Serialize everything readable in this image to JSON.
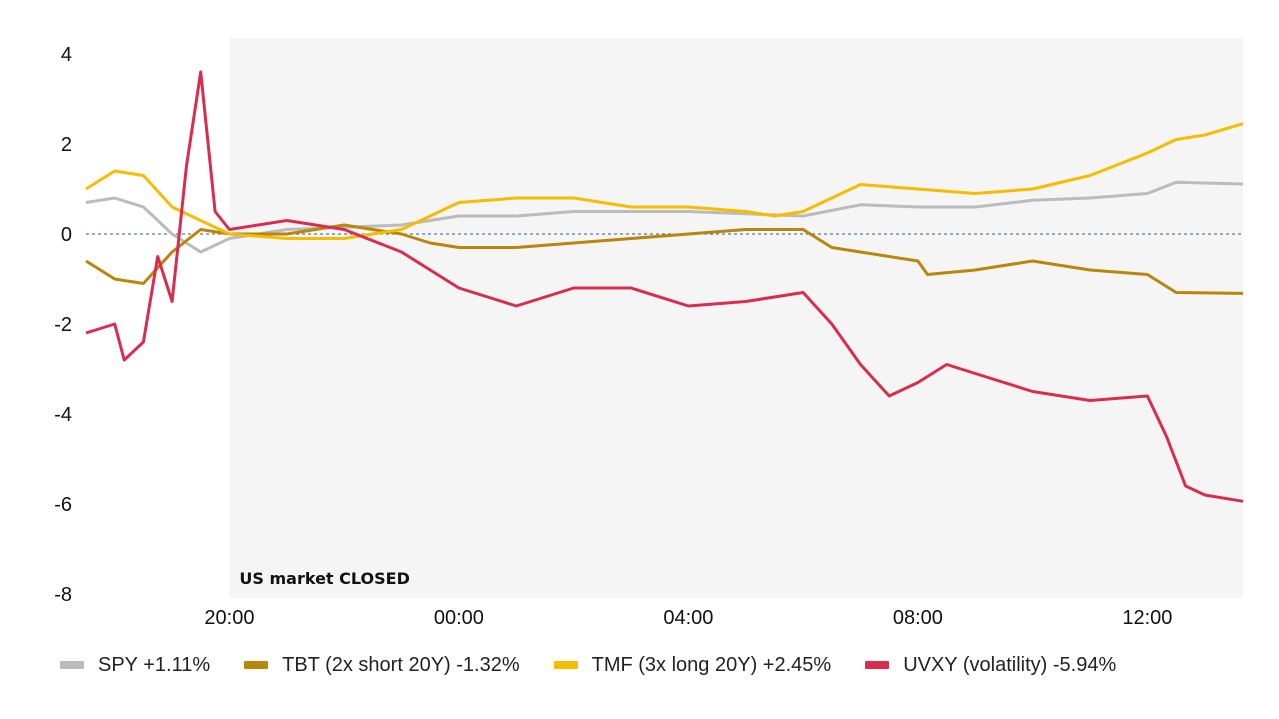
{
  "chart_data": {
    "type": "line",
    "title": "",
    "xlabel": "",
    "ylabel": "",
    "ylim": [
      -8,
      4
    ],
    "xlim": [
      "17:30",
      "13:40"
    ],
    "y_ticks": [
      -8,
      -6,
      -4,
      -2,
      0,
      2,
      4
    ],
    "x_ticks": [
      "20:00",
      "00:00",
      "04:00",
      "08:00",
      "12:00"
    ],
    "zero_line": "dashed",
    "grid": false,
    "shaded_region": {
      "from": "20:00",
      "to": "13:40",
      "label": "US market CLOSED",
      "color": "#f5f5f5"
    },
    "legend_position": "bottom",
    "series": [
      {
        "name": "SPY +1.11%",
        "color": "#bbbbbb",
        "points": [
          [
            "17:30",
            0.7
          ],
          [
            "18:00",
            0.8
          ],
          [
            "18:30",
            0.6
          ],
          [
            "19:00",
            0.0
          ],
          [
            "19:30",
            -0.4
          ],
          [
            "20:00",
            -0.1
          ],
          [
            "21:00",
            0.1
          ],
          [
            "22:00",
            0.15
          ],
          [
            "23:00",
            0.2
          ],
          [
            "00:00",
            0.4
          ],
          [
            "01:00",
            0.4
          ],
          [
            "02:00",
            0.5
          ],
          [
            "03:00",
            0.5
          ],
          [
            "04:00",
            0.5
          ],
          [
            "05:00",
            0.45
          ],
          [
            "06:00",
            0.4
          ],
          [
            "07:00",
            0.65
          ],
          [
            "08:00",
            0.6
          ],
          [
            "09:00",
            0.6
          ],
          [
            "10:00",
            0.75
          ],
          [
            "11:00",
            0.8
          ],
          [
            "12:00",
            0.9
          ],
          [
            "12:30",
            1.15
          ],
          [
            "13:40",
            1.11
          ]
        ]
      },
      {
        "name": "TBT (2x short 20Y) -1.32%",
        "color": "#b8860b",
        "points": [
          [
            "17:30",
            -0.6
          ],
          [
            "18:00",
            -1.0
          ],
          [
            "18:30",
            -1.1
          ],
          [
            "19:00",
            -0.4
          ],
          [
            "19:30",
            0.1
          ],
          [
            "20:00",
            0.0
          ],
          [
            "21:00",
            0.0
          ],
          [
            "22:00",
            0.2
          ],
          [
            "23:00",
            0.0
          ],
          [
            "23:30",
            -0.2
          ],
          [
            "00:00",
            -0.3
          ],
          [
            "01:00",
            -0.3
          ],
          [
            "02:00",
            -0.2
          ],
          [
            "03:00",
            -0.1
          ],
          [
            "04:00",
            0.0
          ],
          [
            "05:00",
            0.1
          ],
          [
            "06:00",
            0.1
          ],
          [
            "06:30",
            -0.3
          ],
          [
            "07:00",
            -0.4
          ],
          [
            "08:00",
            -0.6
          ],
          [
            "08:10",
            -0.9
          ],
          [
            "09:00",
            -0.8
          ],
          [
            "10:00",
            -0.6
          ],
          [
            "11:00",
            -0.8
          ],
          [
            "12:00",
            -0.9
          ],
          [
            "12:30",
            -1.3
          ],
          [
            "13:40",
            -1.32
          ]
        ]
      },
      {
        "name": "TMF (3x long 20Y) +2.45%",
        "color": "#f5bc00",
        "points": [
          [
            "17:30",
            1.0
          ],
          [
            "18:00",
            1.4
          ],
          [
            "18:30",
            1.3
          ],
          [
            "19:00",
            0.6
          ],
          [
            "19:30",
            0.3
          ],
          [
            "20:00",
            0.0
          ],
          [
            "21:00",
            -0.1
          ],
          [
            "22:00",
            -0.1
          ],
          [
            "23:00",
            0.1
          ],
          [
            "00:00",
            0.7
          ],
          [
            "01:00",
            0.8
          ],
          [
            "02:00",
            0.8
          ],
          [
            "03:00",
            0.6
          ],
          [
            "04:00",
            0.6
          ],
          [
            "05:00",
            0.5
          ],
          [
            "05:30",
            0.4
          ],
          [
            "06:00",
            0.5
          ],
          [
            "06:30",
            0.8
          ],
          [
            "07:00",
            1.1
          ],
          [
            "08:00",
            1.0
          ],
          [
            "09:00",
            0.9
          ],
          [
            "10:00",
            1.0
          ],
          [
            "11:00",
            1.3
          ],
          [
            "12:00",
            1.8
          ],
          [
            "12:30",
            2.1
          ],
          [
            "13:00",
            2.2
          ],
          [
            "13:40",
            2.45
          ]
        ]
      },
      {
        "name": "UVXY (volatility) -5.94%",
        "color": "#d92d4f",
        "points": [
          [
            "17:30",
            -2.2
          ],
          [
            "18:00",
            -2.0
          ],
          [
            "18:10",
            -2.8
          ],
          [
            "18:30",
            -2.4
          ],
          [
            "18:45",
            -0.5
          ],
          [
            "19:00",
            -1.5
          ],
          [
            "19:15",
            1.5
          ],
          [
            "19:30",
            3.6
          ],
          [
            "19:45",
            0.5
          ],
          [
            "20:00",
            0.1
          ],
          [
            "21:00",
            0.3
          ],
          [
            "22:00",
            0.1
          ],
          [
            "23:00",
            -0.4
          ],
          [
            "23:30",
            -0.8
          ],
          [
            "00:00",
            -1.2
          ],
          [
            "01:00",
            -1.6
          ],
          [
            "02:00",
            -1.2
          ],
          [
            "03:00",
            -1.2
          ],
          [
            "04:00",
            -1.6
          ],
          [
            "05:00",
            -1.5
          ],
          [
            "06:00",
            -1.3
          ],
          [
            "06:30",
            -2.0
          ],
          [
            "07:00",
            -2.9
          ],
          [
            "07:30",
            -3.6
          ],
          [
            "08:00",
            -3.3
          ],
          [
            "08:30",
            -2.9
          ],
          [
            "09:00",
            -3.1
          ],
          [
            "10:00",
            -3.5
          ],
          [
            "11:00",
            -3.7
          ],
          [
            "12:00",
            -3.6
          ],
          [
            "12:20",
            -4.5
          ],
          [
            "12:40",
            -5.6
          ],
          [
            "13:00",
            -5.8
          ],
          [
            "13:40",
            -5.94
          ]
        ]
      }
    ]
  }
}
